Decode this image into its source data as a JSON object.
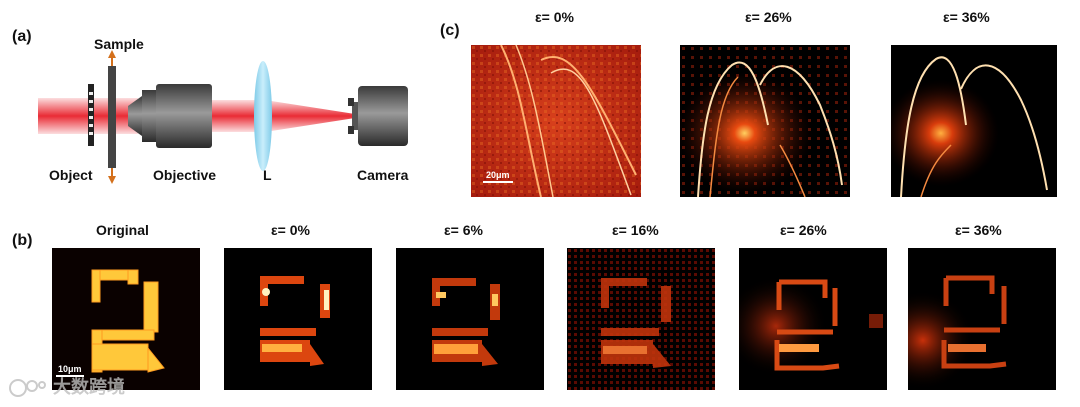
{
  "panels": {
    "a": {
      "letter": "(a)",
      "labels": {
        "sample": "Sample",
        "object": "Object",
        "objective": "Objective",
        "lens": "L",
        "camera": "Camera"
      }
    },
    "b": {
      "letter": "(b)",
      "titles": [
        "Original",
        "ε= 0%",
        "ε= 6%",
        "ε= 16%",
        "ε= 26%",
        "ε= 36%"
      ],
      "scale_label": "10μm"
    },
    "c": {
      "letter": "(c)",
      "titles": [
        "ε= 0%",
        "ε= 26%",
        "ε= 36%"
      ],
      "scale_label": "20μm"
    }
  },
  "watermark": {
    "text": "大数跨境"
  },
  "colors": {
    "laser": "#e8202a",
    "lens": "#a8dcf0",
    "hot": "#ffcf40",
    "bg": "#000000"
  }
}
